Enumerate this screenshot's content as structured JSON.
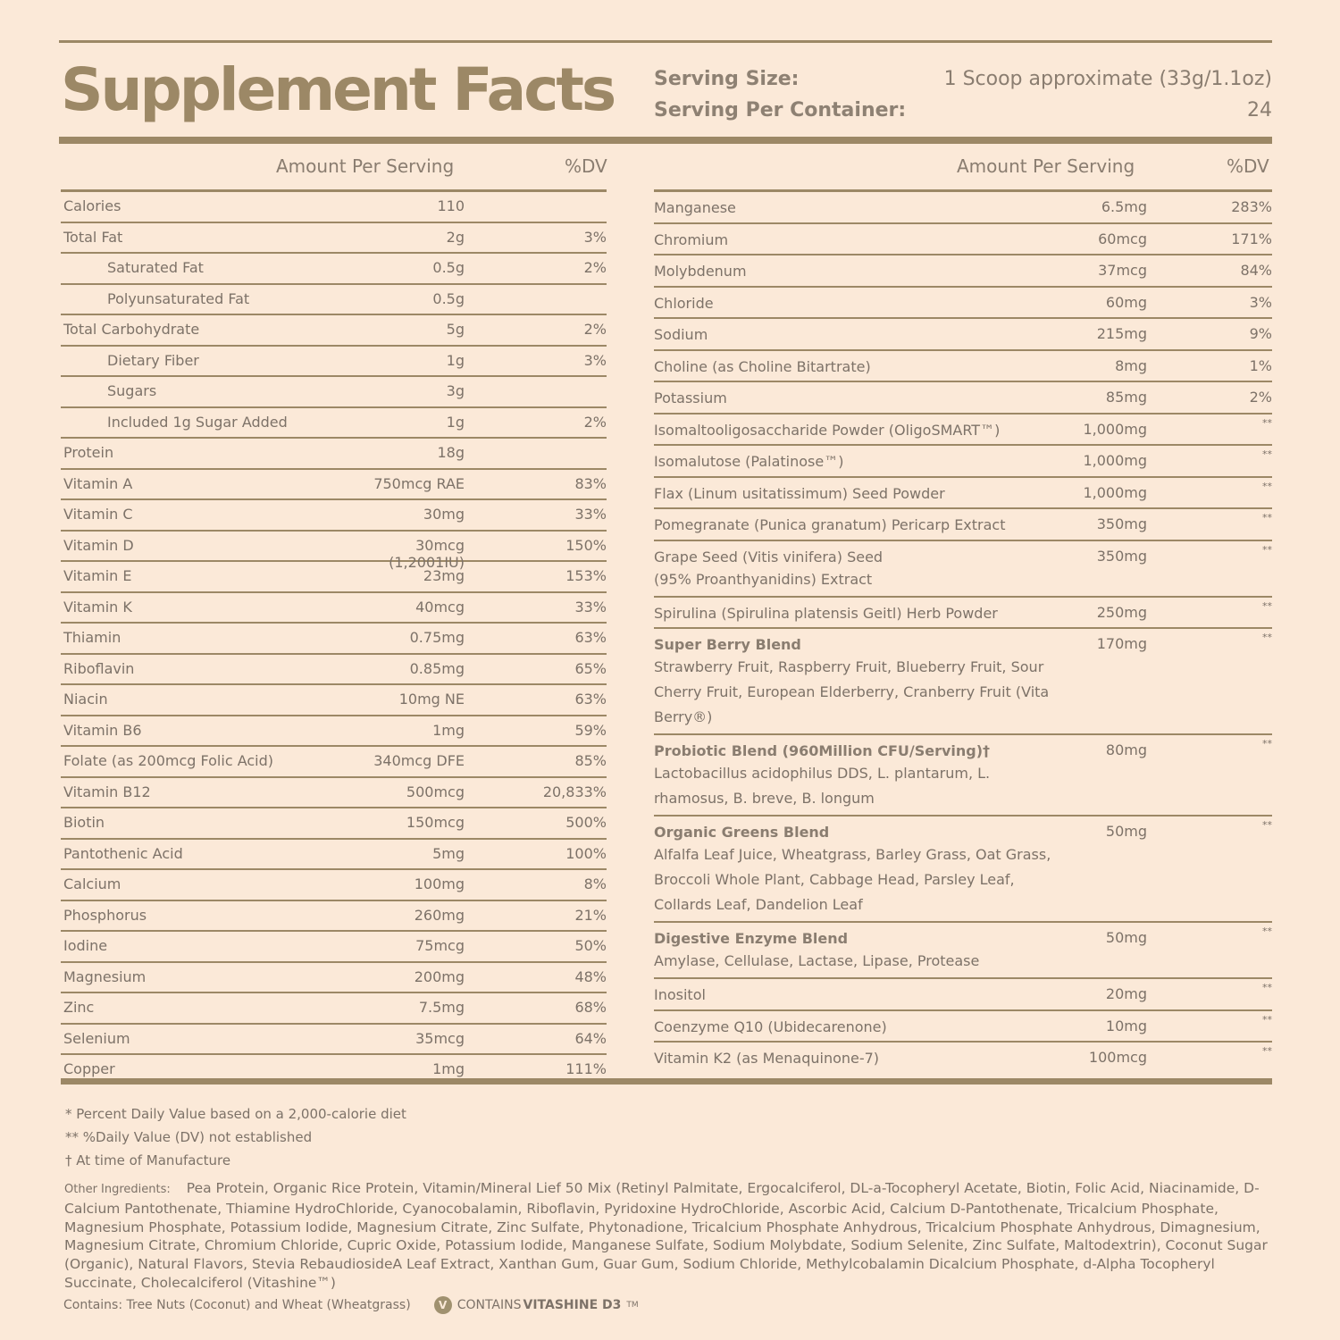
{
  "title": "Supplement Facts",
  "serving": {
    "size_label": "Serving Size:",
    "size_value": "1 Scoop approximate (33g/1.1oz)",
    "per_label": "Serving Per Container:",
    "per_value": "24"
  },
  "headers": {
    "amount": "Amount Per Serving",
    "dv": "%DV"
  },
  "left": [
    {
      "name": "Calories",
      "amount": "110",
      "dv": ""
    },
    {
      "name": "Total Fat",
      "amount": "2g",
      "dv": "3%"
    },
    {
      "name": "Saturated Fat",
      "amount": "0.5g",
      "dv": "2%",
      "indent": true
    },
    {
      "name": "Polyunsaturated Fat",
      "amount": "0.5g",
      "dv": "",
      "indent": true
    },
    {
      "name": "Total Carbohydrate",
      "amount": "5g",
      "dv": "2%"
    },
    {
      "name": "Dietary Fiber",
      "amount": "1g",
      "dv": "3%",
      "indent": true
    },
    {
      "name": "Sugars",
      "amount": "3g",
      "dv": "",
      "indent": true
    },
    {
      "name": "Included 1g Sugar Added",
      "amount": "1g",
      "dv": "2%",
      "indent": true
    },
    {
      "name": "Protein",
      "amount": "18g",
      "dv": ""
    },
    {
      "name": "Vitamin A",
      "amount": "750mcg RAE",
      "dv": "83%"
    },
    {
      "name": "Vitamin C",
      "amount": "30mg",
      "dv": "33%"
    },
    {
      "name": "Vitamin D",
      "amount": "30mcg (1,2001IU)",
      "dv": "150%"
    },
    {
      "name": "Vitamin E",
      "amount": "23mg",
      "dv": "153%"
    },
    {
      "name": "Vitamin K",
      "amount": "40mcg",
      "dv": "33%"
    },
    {
      "name": "Thiamin",
      "amount": "0.75mg",
      "dv": "63%"
    },
    {
      "name": "Riboflavin",
      "amount": "0.85mg",
      "dv": "65%"
    },
    {
      "name": "Niacin",
      "amount": "10mg NE",
      "dv": "63%"
    },
    {
      "name": "Vitamin B6",
      "amount": "1mg",
      "dv": "59%"
    },
    {
      "name": "Folate (as 200mcg Folic Acid)",
      "amount": "340mcg DFE",
      "dv": "85%"
    },
    {
      "name": "Vitamin B12",
      "amount": "500mcg",
      "dv": "20,833%"
    },
    {
      "name": "Biotin",
      "amount": "150mcg",
      "dv": "500%"
    },
    {
      "name": "Pantothenic Acid",
      "amount": "5mg",
      "dv": "100%"
    },
    {
      "name": "Calcium",
      "amount": "100mg",
      "dv": "8%"
    },
    {
      "name": "Phosphorus",
      "amount": "260mg",
      "dv": "21%"
    },
    {
      "name": "Iodine",
      "amount": "75mcg",
      "dv": "50%"
    },
    {
      "name": "Magnesium",
      "amount": "200mg",
      "dv": "48%"
    },
    {
      "name": "Zinc",
      "amount": "7.5mg",
      "dv": "68%"
    },
    {
      "name": "Selenium",
      "amount": "35mcg",
      "dv": "64%"
    },
    {
      "name": "Copper",
      "amount": "1mg",
      "dv": "111%"
    }
  ],
  "right": [
    {
      "name": "Manganese",
      "amount": "6.5mg",
      "dv": "283%"
    },
    {
      "name": "Chromium",
      "amount": "60mcg",
      "dv": "171%"
    },
    {
      "name": "Molybdenum",
      "amount": "37mcg",
      "dv": "84%"
    },
    {
      "name": "Chloride",
      "amount": "60mg",
      "dv": "3%"
    },
    {
      "name": "Sodium",
      "amount": "215mg",
      "dv": "9%"
    },
    {
      "name": "Choline (as Choline Bitartrate)",
      "amount": "8mg",
      "dv": "1%"
    },
    {
      "name": "Potassium",
      "amount": "85mg",
      "dv": "2%"
    },
    {
      "name": "Isomaltooligosaccharide Powder (OligoSMART™)",
      "amount": "1,000mg",
      "dv": "**"
    },
    {
      "name": "Isomalutose (Palatinose™)",
      "amount": "1,000mg",
      "dv": "**"
    },
    {
      "name": "Flax (Linum usitatissimum) Seed Powder",
      "amount": "1,000mg",
      "dv": "**"
    },
    {
      "name": "Pomegranate (Punica granatum) Pericarp Extract",
      "amount": "350mg",
      "dv": "**"
    },
    {
      "name": "Grape Seed (Vitis vinifera) Seed",
      "sub": "(95% Proanthyanidins) Extract",
      "amount": "350mg",
      "dv": "**"
    },
    {
      "name": "Spirulina (Spirulina platensis Geitl) Herb Powder",
      "amount": "250mg",
      "dv": "**"
    },
    {
      "name": "Super Berry Blend",
      "bold": true,
      "sub": "Strawberry Fruit, Raspberry Fruit, Blueberry Fruit, Sour Cherry Fruit, European Elderberry, Cranberry Fruit  (Vita Berry®)",
      "amount": "170mg",
      "dv": "**"
    },
    {
      "name": "Probiotic Blend (960Million CFU/Serving)†",
      "bold": true,
      "sub": "Lactobacillus acidophilus DDS, L. plantarum, L. rhamosus, B. breve, B. longum",
      "amount": "80mg",
      "dv": "**"
    },
    {
      "name": "Organic Greens Blend",
      "bold": true,
      "sub": "Alfalfa Leaf Juice, Wheatgrass, Barley Grass, Oat Grass, Broccoli Whole Plant, Cabbage Head, Parsley Leaf, Collards Leaf, Dandelion Leaf",
      "amount": "50mg",
      "dv": "**"
    },
    {
      "name": "Digestive Enzyme Blend",
      "bold": true,
      "sub": "Amylase, Cellulase, Lactase, Lipase, Protease",
      "amount": "50mg",
      "dv": "**"
    },
    {
      "name": "Inositol",
      "amount": "20mg",
      "dv": "**"
    },
    {
      "name": "Coenzyme Q10 (Ubidecarenone)",
      "amount": "10mg",
      "dv": "**"
    },
    {
      "name": "Vitamin K2 (as Menaquinone-7)",
      "amount": "100mcg",
      "dv": "**"
    }
  ],
  "footnotes": [
    "* Percent Daily Value based on a 2,000-calorie diet",
    "** %Daily Value (DV) not established",
    "† At time of Manufacture"
  ],
  "other_ingredients": {
    "label": "Other Ingredients:",
    "text": "Pea Protein, Organic Rice Protein, Vitamin/Mineral Lief 50 Mix (Retinyl Palmitate, Ergocalciferol, DL-a-Tocopheryl Acetate, Biotin, Folic Acid, Niacinamide, D-Calcium Pantothenate, Thiamine HydroChloride, Cyanocobalamin, Riboflavin, Pyridoxine HydroChloride, Ascorbic Acid, Calcium D-Pantothenate, Tricalcium Phosphate, Magnesium Phosphate, Potassium Iodide, Magnesium Citrate, Zinc Sulfate, Phytonadione, Tricalcium Phosphate Anhydrous, Tricalcium Phosphate Anhydrous, Dimagnesium, Magnesium Citrate, Chromium Chloride, Cupric Oxide, Potassium Iodide, Manganese Sulfate, Sodium Molybdate, Sodium Selenite, Zinc Sulfate, Maltodextrin), Coconut Sugar (Organic), Natural Flavors, Stevia RebaudiosideA Leaf Extract, Xanthan Gum, Guar Gum, Sodium Chloride, Methylcobalamin Dicalcium Phosphate, d-Alpha Tocopheryl Succinate, Cholecalciferol (Vitashine™)"
  },
  "contains": {
    "allergens": "Contains: Tree Nuts (Coconut) and Wheat (Wheatgrass)",
    "vitashine_prefix": "CONTAINS ",
    "vitashine_brand": "VITASHINE D3",
    "vitashine_tm": "TM",
    "icon": "v-leaf-icon"
  },
  "colors": {
    "background": "#fbe9d8",
    "accent": "#9c8866",
    "text": "#7d7268"
  }
}
